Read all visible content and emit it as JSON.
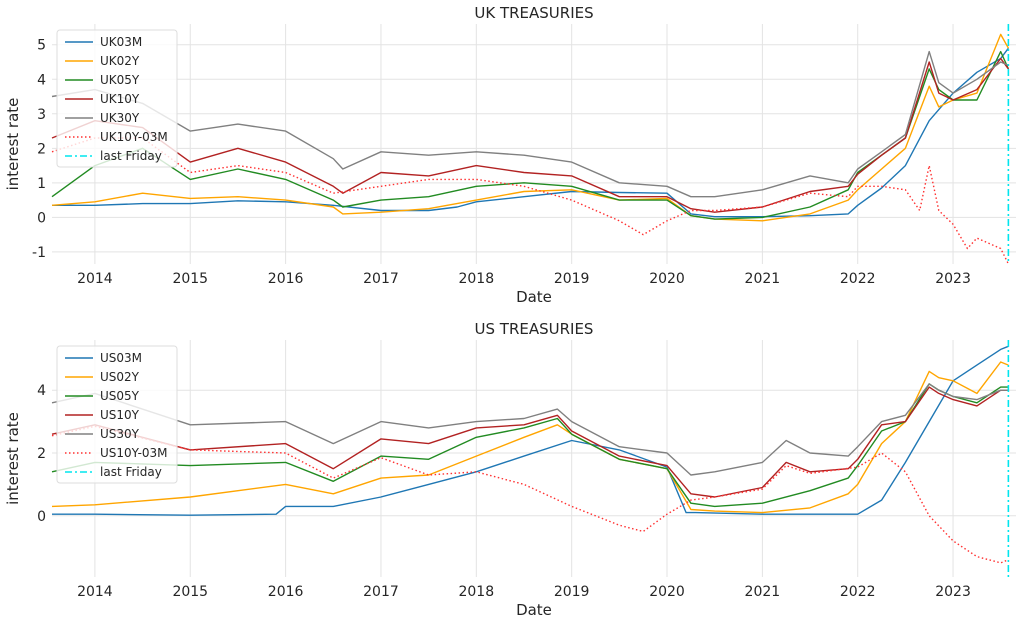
{
  "chart_data": [
    {
      "type": "line",
      "title": "UK TREASURIES",
      "xlabel": "Date",
      "ylabel": "interest rate",
      "xlim": [
        2013.55,
        2023.66
      ],
      "ylim": [
        -1.35,
        5.6
      ],
      "xticks": [
        "2014",
        "2015",
        "2016",
        "2017",
        "2018",
        "2019",
        "2020",
        "2021",
        "2022",
        "2023"
      ],
      "yticks": [
        "-1",
        "0",
        "1",
        "2",
        "3",
        "4",
        "5"
      ],
      "grid": true,
      "legend_position": "top-left",
      "vline": {
        "name": "last Friday",
        "x": 2023.58,
        "color": "#00e5ee"
      },
      "series": [
        {
          "name": "UK03M",
          "color": "#1f77b4",
          "style": "solid",
          "x": [
            2013.55,
            2014.0,
            2014.5,
            2015.0,
            2015.5,
            2016.0,
            2016.5,
            2017.0,
            2017.5,
            2017.8,
            2018.0,
            2018.5,
            2019.0,
            2019.5,
            2020.0,
            2020.25,
            2020.5,
            2021.0,
            2021.5,
            2021.9,
            2022.0,
            2022.25,
            2022.5,
            2022.75,
            2023.0,
            2023.25,
            2023.5,
            2023.58
          ],
          "y": [
            0.35,
            0.35,
            0.4,
            0.4,
            0.48,
            0.45,
            0.35,
            0.2,
            0.2,
            0.3,
            0.45,
            0.6,
            0.75,
            0.72,
            0.7,
            0.1,
            0.02,
            0.02,
            0.05,
            0.1,
            0.35,
            0.85,
            1.5,
            2.8,
            3.6,
            4.2,
            4.6,
            4.9
          ]
        },
        {
          "name": "UK02Y",
          "color": "#ffa500",
          "style": "solid",
          "x": [
            2013.55,
            2014.0,
            2014.5,
            2015.0,
            2015.5,
            2016.0,
            2016.5,
            2016.6,
            2017.0,
            2017.5,
            2018.0,
            2018.5,
            2019.0,
            2019.5,
            2020.0,
            2020.25,
            2020.5,
            2021.0,
            2021.5,
            2021.9,
            2022.0,
            2022.25,
            2022.5,
            2022.75,
            2022.85,
            2023.0,
            2023.25,
            2023.5,
            2023.58
          ],
          "y": [
            0.35,
            0.45,
            0.7,
            0.55,
            0.6,
            0.5,
            0.3,
            0.1,
            0.15,
            0.25,
            0.5,
            0.75,
            0.8,
            0.5,
            0.55,
            0.05,
            -0.05,
            -0.1,
            0.1,
            0.5,
            0.8,
            1.4,
            2.0,
            3.8,
            3.2,
            3.4,
            3.6,
            5.3,
            4.9
          ]
        },
        {
          "name": "UK05Y",
          "color": "#228b22",
          "style": "solid",
          "x": [
            2013.55,
            2014.0,
            2014.5,
            2015.0,
            2015.5,
            2016.0,
            2016.5,
            2016.6,
            2017.0,
            2017.5,
            2018.0,
            2018.5,
            2019.0,
            2019.5,
            2020.0,
            2020.25,
            2020.5,
            2021.0,
            2021.5,
            2021.9,
            2022.0,
            2022.25,
            2022.5,
            2022.75,
            2022.85,
            2023.0,
            2023.25,
            2023.5,
            2023.58
          ],
          "y": [
            0.6,
            1.5,
            2.0,
            1.1,
            1.4,
            1.1,
            0.5,
            0.3,
            0.5,
            0.6,
            0.9,
            1.0,
            0.9,
            0.5,
            0.5,
            0.05,
            -0.05,
            0.0,
            0.3,
            0.8,
            1.3,
            1.8,
            2.3,
            4.3,
            3.7,
            3.4,
            3.4,
            4.8,
            4.3
          ]
        },
        {
          "name": "UK10Y",
          "color": "#b22222",
          "style": "solid",
          "x": [
            2013.55,
            2014.0,
            2014.5,
            2015.0,
            2015.5,
            2016.0,
            2016.5,
            2016.6,
            2017.0,
            2017.5,
            2018.0,
            2018.5,
            2019.0,
            2019.5,
            2020.0,
            2020.25,
            2020.5,
            2021.0,
            2021.5,
            2021.9,
            2022.0,
            2022.25,
            2022.5,
            2022.75,
            2022.85,
            2023.0,
            2023.25,
            2023.5,
            2023.58
          ],
          "y": [
            2.3,
            2.8,
            2.6,
            1.6,
            2.0,
            1.6,
            0.9,
            0.7,
            1.3,
            1.2,
            1.5,
            1.3,
            1.2,
            0.6,
            0.6,
            0.25,
            0.15,
            0.3,
            0.75,
            0.9,
            1.25,
            1.8,
            2.3,
            4.5,
            3.6,
            3.4,
            3.7,
            4.6,
            4.3
          ]
        },
        {
          "name": "UK30Y",
          "color": "#808080",
          "style": "solid",
          "x": [
            2013.55,
            2014.0,
            2014.5,
            2015.0,
            2015.5,
            2016.0,
            2016.5,
            2016.6,
            2017.0,
            2017.5,
            2018.0,
            2018.5,
            2019.0,
            2019.5,
            2020.0,
            2020.25,
            2020.5,
            2021.0,
            2021.5,
            2021.9,
            2022.0,
            2022.25,
            2022.5,
            2022.75,
            2022.85,
            2023.0,
            2023.25,
            2023.5,
            2023.58
          ],
          "y": [
            3.5,
            3.7,
            3.3,
            2.5,
            2.7,
            2.5,
            1.7,
            1.4,
            1.9,
            1.8,
            1.9,
            1.8,
            1.6,
            1.0,
            0.9,
            0.6,
            0.6,
            0.8,
            1.2,
            1.0,
            1.4,
            1.9,
            2.4,
            4.8,
            3.9,
            3.6,
            4.0,
            4.5,
            4.4
          ]
        },
        {
          "name": "UK10Y-03M",
          "color": "#ff3030",
          "style": "dotted",
          "x": [
            2013.55,
            2014.0,
            2014.5,
            2015.0,
            2015.5,
            2016.0,
            2016.5,
            2017.0,
            2017.5,
            2018.0,
            2018.5,
            2019.0,
            2019.5,
            2019.75,
            2020.0,
            2020.25,
            2020.5,
            2021.0,
            2021.5,
            2021.9,
            2022.0,
            2022.25,
            2022.5,
            2022.65,
            2022.75,
            2022.85,
            2023.0,
            2023.15,
            2023.25,
            2023.5,
            2023.58
          ],
          "y": [
            1.9,
            2.3,
            2.3,
            1.3,
            1.5,
            1.3,
            0.7,
            0.9,
            1.1,
            1.1,
            0.9,
            0.5,
            -0.1,
            -0.5,
            -0.1,
            0.2,
            0.2,
            0.3,
            0.7,
            0.6,
            0.9,
            0.9,
            0.8,
            0.2,
            1.5,
            0.2,
            -0.2,
            -0.9,
            -0.6,
            -0.9,
            -1.35
          ]
        }
      ]
    },
    {
      "type": "line",
      "title": "US TREASURIES",
      "xlabel": "Date",
      "ylabel": "interest rate",
      "xlim": [
        2013.55,
        2023.66
      ],
      "ylim": [
        -1.95,
        5.6
      ],
      "xticks": [
        "2014",
        "2015",
        "2016",
        "2017",
        "2018",
        "2019",
        "2020",
        "2021",
        "2022",
        "2023"
      ],
      "yticks": [
        "0",
        "2",
        "4"
      ],
      "grid": true,
      "legend_position": "top-left",
      "vline": {
        "name": "last Friday",
        "x": 2023.58,
        "color": "#00e5ee"
      },
      "series": [
        {
          "name": "US03M",
          "color": "#1f77b4",
          "style": "solid",
          "x": [
            2013.55,
            2014.0,
            2015.0,
            2015.9,
            2016.0,
            2016.5,
            2017.0,
            2017.5,
            2018.0,
            2018.5,
            2019.0,
            2019.5,
            2020.0,
            2020.2,
            2020.3,
            2021.0,
            2021.5,
            2022.0,
            2022.25,
            2022.5,
            2022.75,
            2023.0,
            2023.25,
            2023.5,
            2023.58
          ],
          "y": [
            0.05,
            0.05,
            0.02,
            0.05,
            0.3,
            0.3,
            0.6,
            1.0,
            1.4,
            1.9,
            2.4,
            2.1,
            1.55,
            0.1,
            0.1,
            0.05,
            0.05,
            0.05,
            0.5,
            1.7,
            3.0,
            4.3,
            4.8,
            5.3,
            5.4
          ]
        },
        {
          "name": "US02Y",
          "color": "#ffa500",
          "style": "solid",
          "x": [
            2013.55,
            2014.0,
            2015.0,
            2016.0,
            2016.5,
            2017.0,
            2017.5,
            2018.0,
            2018.5,
            2018.85,
            2019.0,
            2019.5,
            2020.0,
            2020.25,
            2020.5,
            2021.0,
            2021.5,
            2021.9,
            2022.0,
            2022.25,
            2022.5,
            2022.75,
            2022.85,
            2023.0,
            2023.25,
            2023.5,
            2023.58
          ],
          "y": [
            0.3,
            0.35,
            0.6,
            1.0,
            0.7,
            1.2,
            1.3,
            1.9,
            2.5,
            2.9,
            2.6,
            1.8,
            1.5,
            0.2,
            0.15,
            0.1,
            0.25,
            0.7,
            1.0,
            2.3,
            3.0,
            4.6,
            4.4,
            4.3,
            3.9,
            4.9,
            4.8
          ]
        },
        {
          "name": "US05Y",
          "color": "#228b22",
          "style": "solid",
          "x": [
            2013.55,
            2014.0,
            2015.0,
            2016.0,
            2016.5,
            2017.0,
            2017.5,
            2018.0,
            2018.5,
            2018.85,
            2019.0,
            2019.5,
            2020.0,
            2020.25,
            2020.5,
            2021.0,
            2021.5,
            2021.9,
            2022.0,
            2022.25,
            2022.5,
            2022.75,
            2022.85,
            2023.0,
            2023.25,
            2023.5,
            2023.58
          ],
          "y": [
            1.4,
            1.7,
            1.6,
            1.7,
            1.1,
            1.9,
            1.8,
            2.5,
            2.8,
            3.1,
            2.6,
            1.8,
            1.5,
            0.4,
            0.3,
            0.4,
            0.8,
            1.2,
            1.6,
            2.7,
            3.0,
            4.2,
            4.0,
            3.8,
            3.6,
            4.1,
            4.1
          ]
        },
        {
          "name": "US10Y",
          "color": "#b22222",
          "style": "solid",
          "x": [
            2013.55,
            2014.0,
            2015.0,
            2016.0,
            2016.5,
            2017.0,
            2017.5,
            2018.0,
            2018.5,
            2018.85,
            2019.0,
            2019.5,
            2020.0,
            2020.25,
            2020.5,
            2021.0,
            2021.25,
            2021.5,
            2021.9,
            2022.0,
            2022.25,
            2022.5,
            2022.75,
            2022.85,
            2023.0,
            2023.25,
            2023.5,
            2023.58
          ],
          "y": [
            2.6,
            2.9,
            2.1,
            2.3,
            1.5,
            2.45,
            2.3,
            2.8,
            2.9,
            3.2,
            2.7,
            1.9,
            1.6,
            0.7,
            0.6,
            0.9,
            1.7,
            1.4,
            1.5,
            1.8,
            2.9,
            3.0,
            4.1,
            3.9,
            3.7,
            3.5,
            4.0,
            4.0
          ]
        },
        {
          "name": "US30Y",
          "color": "#808080",
          "style": "solid",
          "x": [
            2013.55,
            2014.0,
            2015.0,
            2016.0,
            2016.5,
            2017.0,
            2017.5,
            2018.0,
            2018.5,
            2018.85,
            2019.0,
            2019.5,
            2020.0,
            2020.25,
            2020.5,
            2021.0,
            2021.25,
            2021.5,
            2021.9,
            2022.0,
            2022.25,
            2022.5,
            2022.75,
            2022.85,
            2023.0,
            2023.25,
            2023.5,
            2023.58
          ],
          "y": [
            3.6,
            3.9,
            2.9,
            3.0,
            2.3,
            3.0,
            2.8,
            3.0,
            3.1,
            3.4,
            3.0,
            2.2,
            2.0,
            1.3,
            1.4,
            1.7,
            2.4,
            2.0,
            1.9,
            2.2,
            3.0,
            3.2,
            4.2,
            4.0,
            3.8,
            3.7,
            4.0,
            4.0
          ]
        },
        {
          "name": "US10Y-03M",
          "color": "#ff3030",
          "style": "dotted",
          "x": [
            2013.55,
            2014.0,
            2015.0,
            2016.0,
            2016.5,
            2017.0,
            2017.5,
            2018.0,
            2018.5,
            2019.0,
            2019.25,
            2019.5,
            2019.75,
            2020.0,
            2020.25,
            2020.5,
            2021.0,
            2021.25,
            2021.5,
            2022.0,
            2022.25,
            2022.5,
            2022.75,
            2023.0,
            2023.25,
            2023.5,
            2023.58
          ],
          "y": [
            2.55,
            2.85,
            2.1,
            2.0,
            1.2,
            1.85,
            1.3,
            1.4,
            1.0,
            0.3,
            0.0,
            -0.3,
            -0.5,
            0.05,
            0.5,
            0.6,
            0.85,
            1.6,
            1.35,
            1.55,
            2.0,
            1.4,
            0.0,
            -0.8,
            -1.3,
            -1.5,
            -1.4
          ]
        }
      ]
    }
  ]
}
